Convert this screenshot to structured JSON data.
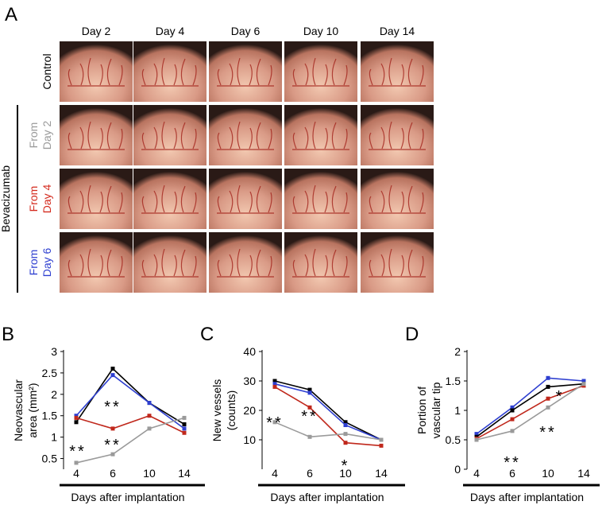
{
  "panel_a": {
    "letter": "A",
    "columns": [
      "Day 2",
      "Day 4",
      "Day 6",
      "Day 10",
      "Day 14"
    ],
    "group": "Bevacizumab",
    "rows": [
      {
        "lines": [
          "Control"
        ],
        "color": "#000000"
      },
      {
        "lines": [
          "From",
          "Day 2"
        ],
        "color": "#9a9a9a"
      },
      {
        "lines": [
          "From",
          "Day 4"
        ],
        "color": "#d42a1e"
      },
      {
        "lines": [
          "From",
          "Day 6"
        ],
        "color": "#2e3fd0"
      }
    ]
  },
  "chart_data": [
    {
      "type": "line",
      "letter": "B",
      "ylabel": [
        "Neovascular",
        "area (mm²)"
      ],
      "xlabel": "Days after implantation",
      "categories": [
        "4",
        "6",
        "10",
        "14"
      ],
      "ylim": [
        0.25,
        3
      ],
      "yticks": [
        0.5,
        1,
        1.5,
        2,
        2.5,
        3
      ],
      "annotations": [
        "**",
        "**",
        "**"
      ],
      "series": [
        {
          "color": "#000000",
          "values": [
            1.35,
            2.6,
            1.8,
            1.3
          ]
        },
        {
          "color": "#2e3fd0",
          "values": [
            1.5,
            2.45,
            1.8,
            1.2
          ]
        },
        {
          "color": "#c0281c",
          "values": [
            1.45,
            1.2,
            1.5,
            1.1
          ]
        },
        {
          "color": "#9a9a9a",
          "values": [
            0.4,
            0.6,
            1.2,
            1.45
          ]
        }
      ]
    },
    {
      "type": "line",
      "letter": "C",
      "ylabel": [
        "New vessels",
        "(counts)"
      ],
      "xlabel": "Days after implantation",
      "categories": [
        "4",
        "6",
        "10",
        "14"
      ],
      "ylim": [
        0,
        40
      ],
      "yticks": [
        10,
        20,
        30,
        40
      ],
      "annotations": [
        "**",
        "**",
        "*"
      ],
      "series": [
        {
          "color": "#000000",
          "values": [
            30,
            27,
            16,
            10
          ]
        },
        {
          "color": "#2e3fd0",
          "values": [
            29,
            26,
            15,
            10
          ]
        },
        {
          "color": "#c0281c",
          "values": [
            28,
            21,
            9,
            8
          ]
        },
        {
          "color": "#9a9a9a",
          "values": [
            16,
            11,
            12,
            10
          ]
        }
      ]
    },
    {
      "type": "line",
      "letter": "D",
      "ylabel": [
        "Portion of",
        "vascular tip"
      ],
      "xlabel": "Days after implantation",
      "categories": [
        "4",
        "6",
        "10",
        "14"
      ],
      "ylim": [
        0,
        2
      ],
      "yticks": [
        0,
        0.5,
        1,
        1.5,
        2
      ],
      "annotations": [
        "**",
        "**",
        "*"
      ],
      "series": [
        {
          "color": "#2e3fd0",
          "values": [
            0.6,
            1.05,
            1.55,
            1.5
          ]
        },
        {
          "color": "#000000",
          "values": [
            0.55,
            1.0,
            1.4,
            1.45
          ]
        },
        {
          "color": "#c0281c",
          "values": [
            0.52,
            0.85,
            1.2,
            1.42
          ]
        },
        {
          "color": "#9a9a9a",
          "values": [
            0.5,
            0.65,
            1.05,
            1.45
          ]
        }
      ]
    }
  ]
}
